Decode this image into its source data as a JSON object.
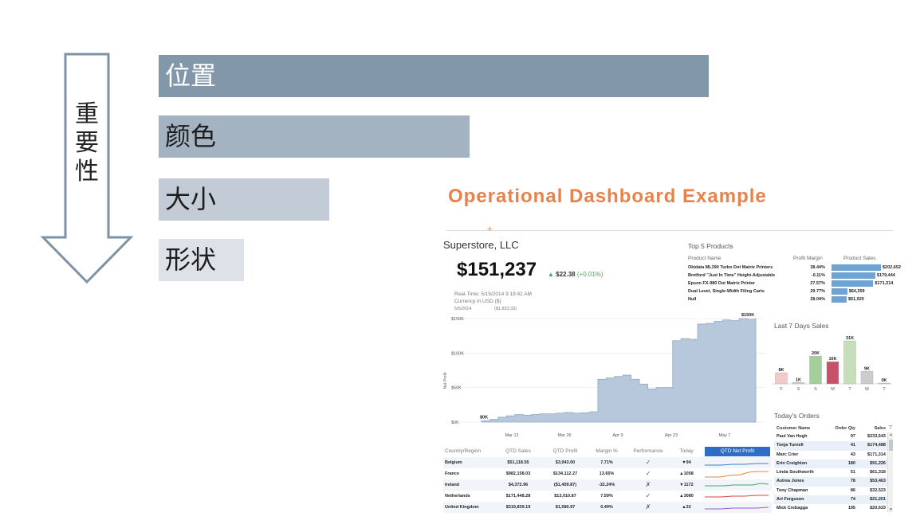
{
  "slide": {
    "importance_label": "重要性",
    "bars": [
      "位置",
      "颜色",
      "大小",
      "形状"
    ],
    "bar_colors": [
      "#8397aa",
      "#a4b3c2",
      "#c3ccd6",
      "#dde2e8"
    ],
    "arrow_color": "#7e92a6"
  },
  "dashboard": {
    "title": "Operational Dashboard Example",
    "title_color": "#e8824a",
    "company": "Superstore, LLC",
    "net_profit": "$151,237",
    "delta_value": "$22.38",
    "delta_pct": "(+0.01%)",
    "realtime": "Real-Time: 5/15/2014 9:19:42 AM",
    "currency": "Currency in USD ($)",
    "date_ref": "5/5/2014",
    "date_ref_value": "($1,833.33)"
  },
  "chart_data": [
    {
      "type": "area",
      "ylabel": "Net Profit",
      "ylim": [
        0,
        150000
      ],
      "yticks": [
        "$0K",
        "$50K",
        "$100K",
        "$150K"
      ],
      "xticks": [
        "Mar 12",
        "Mar 26",
        "Apr 9",
        "Apr 23",
        "May 7"
      ],
      "start_label": "$0K",
      "end_label": "$150K",
      "color": "#b7c8dc",
      "series": [
        {
          "x": [
            "Mar 5",
            "Mar 7",
            "Mar 9",
            "Mar 12",
            "Mar 14",
            "Mar 16",
            "Mar 19",
            "Mar 22",
            "Mar 26",
            "Mar 29",
            "Apr 1",
            "Apr 4",
            "Apr 6",
            "Apr 8",
            "Apr 9",
            "Apr 11",
            "Apr 13",
            "Apr 15",
            "Apr 17",
            "Apr 18",
            "Apr 19",
            "Apr 20",
            "Apr 22",
            "Apr 24",
            "Apr 26",
            "Apr 28",
            "Apr 30",
            "May 2",
            "May 5",
            "May 7",
            "May 9",
            "May 11",
            "May 13",
            "May 15"
          ],
          "values": [
            2000,
            4000,
            7000,
            9000,
            11000,
            10000,
            11000,
            12000,
            12000,
            13000,
            14000,
            13000,
            13500,
            15000,
            62000,
            64000,
            66000,
            68000,
            62000,
            55000,
            48000,
            50000,
            50000,
            118000,
            121000,
            120000,
            142000,
            143000,
            146000,
            148000,
            147000,
            150000,
            149000,
            151000
          ]
        }
      ]
    },
    {
      "type": "bar",
      "title": "Last 7 Days Sales",
      "categories": [
        "F",
        "S",
        "S",
        "M",
        "T",
        "W",
        "T"
      ],
      "labels": [
        "8K",
        "1K",
        "20K",
        "16K",
        "31K",
        "9K",
        "0K"
      ],
      "values": [
        8,
        1,
        20,
        16,
        31,
        9,
        0
      ],
      "colors": [
        "#f0c9c9",
        "#cccccc",
        "#a3cf9a",
        "#c8506a",
        "#c6deb9",
        "#cccccc",
        "#cccccc"
      ]
    }
  ],
  "country_table": {
    "headers": [
      "Country/Region",
      "QTD Sales",
      "QTD Profit",
      "Margin %",
      "Performance",
      "Today",
      "QTD Net Profit"
    ],
    "rows": [
      {
        "country": "Belgium",
        "sales": "$51,118.55",
        "profit": "$3,943.00",
        "margin": "7.71%",
        "perf": "✓",
        "today": "▼94",
        "spark": "#3c80c8"
      },
      {
        "country": "France",
        "sales": "$982,158.03",
        "profit": "$134,112.27",
        "margin": "13.65%",
        "perf": "✓",
        "today": "▲1058",
        "spark": "#e8823c"
      },
      {
        "country": "Ireland",
        "sales": "$4,372.96",
        "profit": "($1,409.87)",
        "margin": "-32.24%",
        "perf": "✗",
        "today": "▼1172",
        "spark": "#3cab6a"
      },
      {
        "country": "Netherlands",
        "sales": "$171,448.28",
        "profit": "$13,010.87",
        "margin": "7.59%",
        "perf": "✓",
        "today": "▲3080",
        "spark": "#d84040"
      },
      {
        "country": "United Kingdom",
        "sales": "$319,839.19",
        "profit": "$1,580.97",
        "margin": "0.49%",
        "perf": "✗",
        "today": "▲22",
        "spark": "#9b59d0"
      }
    ]
  },
  "top5": {
    "title": "Top 5 Products",
    "headers": [
      "Product Name",
      "Profit Margin",
      "Product Sales"
    ],
    "rows": [
      {
        "name": "Okidata ML390 Turbo Dot Matrix Printers",
        "margin": "38.44%",
        "sales": "$202,652",
        "value": 202652
      },
      {
        "name": "Bretford \"Just In Time\" Height-Adjustable",
        "margin": "-0.11%",
        "sales": "$179,444",
        "value": 179444
      },
      {
        "name": "Epson FX-980 Dot Matrix Printer",
        "margin": "27.57%",
        "sales": "$171,314",
        "value": 171314
      },
      {
        "name": "Dual Level, Single-Width Filing Carts",
        "margin": "29.77%",
        "sales": "$64,359",
        "value": 64359
      },
      {
        "name": "Null",
        "margin": "28.04%",
        "sales": "$61,920",
        "value": 61920
      }
    ],
    "bar_color": "#6fa3d4"
  },
  "orders": {
    "title": "Today's Orders",
    "headers": [
      "Customer Name",
      "Order Qty",
      "Sales"
    ],
    "rows": [
      {
        "name": "Paul Van Hugh",
        "qty": "97",
        "sales": "$233,543"
      },
      {
        "name": "Tonja Turnell",
        "qty": "41",
        "sales": "$174,488"
      },
      {
        "name": "Marc Crier",
        "qty": "43",
        "sales": "$171,314"
      },
      {
        "name": "Erin Creighton",
        "qty": "180",
        "sales": "$91,226"
      },
      {
        "name": "Linda Southworth",
        "qty": "51",
        "sales": "$61,318"
      },
      {
        "name": "Astrea Jones",
        "qty": "78",
        "sales": "$53,463"
      },
      {
        "name": "Tony Chapman",
        "qty": "86",
        "sales": "$32,523"
      },
      {
        "name": "Art Ferguson",
        "qty": "74",
        "sales": "$21,201"
      },
      {
        "name": "Mick Crebagga",
        "qty": "195",
        "sales": "$20,633"
      }
    ]
  }
}
